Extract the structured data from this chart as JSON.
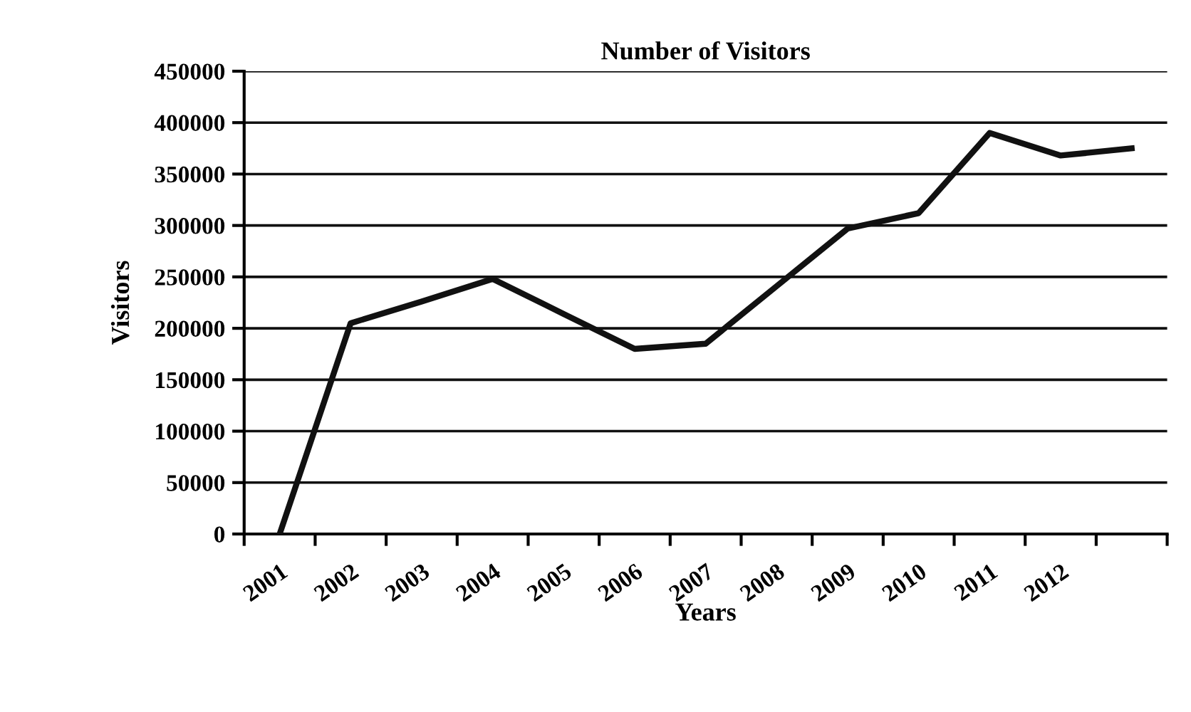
{
  "chart_data": {
    "type": "line",
    "title": "Number of Visitors",
    "xlabel": "Years",
    "ylabel": "Visitors",
    "categories": [
      "2001",
      "2002",
      "2003",
      "2004",
      "2005",
      "2006",
      "2007",
      "2008",
      "2009",
      "2010",
      "2011",
      "2012",
      null
    ],
    "series": [
      {
        "color": "#111111",
        "values": [
          0,
          205000,
          226000,
          248000,
          214000,
          180000,
          185000,
          241000,
          297000,
          312000,
          390000,
          368000,
          375000
        ]
      }
    ],
    "ylim": [
      0,
      450000
    ],
    "yticks": [
      0,
      50000,
      100000,
      150000,
      200000,
      250000,
      300000,
      350000,
      400000,
      450000
    ],
    "grid": "y",
    "legend": false,
    "marker": "none",
    "line_style": "solid"
  }
}
